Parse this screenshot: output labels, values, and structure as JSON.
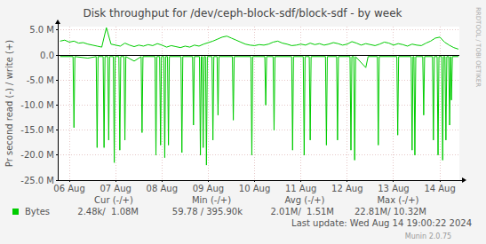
{
  "chart_data": {
    "type": "line",
    "title": "Disk throughput for /dev/ceph-block-sdf/block-sdf - by week",
    "y_label": "Pr second read (-) / write (+)",
    "watermark": "RRDTOOL / TOBI OETIKER",
    "last_update": "Last update: Wed Aug 14 19:00:22 2024",
    "footer": "Munin 2.0.75",
    "grid": true,
    "xlim": [
      5.75,
      14.42
    ],
    "xticks": [
      {
        "value": 6,
        "label": "06 Aug"
      },
      {
        "value": 7,
        "label": "07 Aug"
      },
      {
        "value": 8,
        "label": "08 Aug"
      },
      {
        "value": 9,
        "label": "09 Aug"
      },
      {
        "value": 10,
        "label": "10 Aug"
      },
      {
        "value": 11,
        "label": "11 Aug"
      },
      {
        "value": 12,
        "label": "12 Aug"
      },
      {
        "value": 13,
        "label": "13 Aug"
      },
      {
        "value": 14,
        "label": "14 Aug"
      }
    ],
    "ylim": [
      -25000000,
      5700000
    ],
    "yticks": [
      {
        "value": 5000000,
        "label": "5.0 M"
      },
      {
        "value": 0,
        "label": "0.0"
      },
      {
        "value": -5000000,
        "label": "-5.0 M"
      },
      {
        "value": -10000000,
        "label": "-10.0 M"
      },
      {
        "value": -15000000,
        "label": "-15.0 M"
      },
      {
        "value": -20000000,
        "label": "-20.0 M"
      },
      {
        "value": -25000000,
        "label": "-25.0 M"
      }
    ],
    "x": [
      5.8,
      5.9,
      6.0,
      6.1,
      6.2,
      6.3,
      6.4,
      6.5,
      6.6,
      6.7,
      6.8,
      6.9,
      7.0,
      7.1,
      7.2,
      7.3,
      7.4,
      7.5,
      7.6,
      7.7,
      7.8,
      7.9,
      8.0,
      8.1,
      8.2,
      8.3,
      8.4,
      8.5,
      8.6,
      8.7,
      8.8,
      8.9,
      9.0,
      9.1,
      9.2,
      9.3,
      9.4,
      9.5,
      9.6,
      9.7,
      9.8,
      9.9,
      10.0,
      10.1,
      10.2,
      10.3,
      10.4,
      10.5,
      10.6,
      10.7,
      10.8,
      10.9,
      11.0,
      11.1,
      11.2,
      11.3,
      11.4,
      11.5,
      11.6,
      11.7,
      11.8,
      11.9,
      12.0,
      12.1,
      12.2,
      12.3,
      12.4,
      12.5,
      12.6,
      12.7,
      12.8,
      12.9,
      13.0,
      13.1,
      13.2,
      13.3,
      13.4,
      13.5,
      13.6,
      13.7,
      13.8,
      13.9,
      14.0,
      14.1,
      14.2,
      14.3,
      14.4
    ],
    "series": [
      {
        "name": "Bytes",
        "color": "#00cc00",
        "values": [
          2800000,
          3000000,
          2600000,
          2800000,
          2400000,
          2500000,
          2200000,
          2000000,
          1800000,
          1600000,
          5500000,
          2200000,
          2000000,
          1800000,
          2400000,
          2000000,
          1700000,
          2000000,
          1800000,
          2100000,
          1900000,
          2300000,
          2000000,
          1600000,
          1900000,
          1700000,
          1500000,
          1800000,
          1600000,
          2000000,
          1800000,
          2200000,
          2500000,
          2800000,
          3200000,
          3600000,
          3800000,
          3400000,
          3000000,
          2600000,
          2200000,
          2000000,
          1900000,
          2100000,
          2000000,
          2200000,
          2600000,
          2800000,
          2400000,
          2200000,
          1900000,
          2000000,
          2200000,
          2000000,
          2400000,
          2100000,
          2300000,
          2000000,
          2200000,
          2500000,
          2300000,
          2000000,
          2200000,
          2700000,
          2400000,
          2000000,
          2300000,
          2100000,
          1900000,
          2200000,
          2600000,
          2400000,
          2000000,
          2300000,
          2100000,
          1800000,
          2200000,
          2000000,
          1900000,
          2400000,
          2800000,
          3400000,
          3600000,
          2600000,
          2000000,
          1500000,
          1200000
        ],
        "read": {
          "x": [
            5.8,
            6.08,
            6.1,
            6.12,
            6.4,
            6.58,
            6.6,
            6.62,
            6.73,
            6.75,
            6.77,
            6.83,
            6.85,
            6.87,
            6.95,
            6.97,
            6.99,
            7.07,
            7.09,
            7.11,
            7.18,
            7.2,
            7.22,
            7.4,
            7.55,
            7.57,
            7.59,
            7.85,
            7.87,
            7.89,
            7.95,
            7.97,
            7.99,
            8.04,
            8.06,
            8.08,
            8.12,
            8.14,
            8.16,
            8.41,
            8.43,
            8.45,
            8.66,
            8.68,
            8.7,
            8.81,
            8.83,
            8.85,
            8.87,
            8.89,
            8.91,
            8.94,
            8.96,
            8.98,
            9.08,
            9.1,
            9.12,
            9.19,
            9.21,
            9.23,
            9.52,
            9.54,
            9.56,
            9.92,
            9.94,
            9.96,
            10.22,
            10.24,
            10.26,
            10.4,
            10.42,
            10.44,
            10.8,
            10.82,
            10.84,
            11.05,
            11.07,
            11.09,
            11.18,
            11.2,
            11.22,
            11.53,
            11.55,
            11.57,
            11.77,
            11.79,
            11.81,
            12.06,
            12.08,
            12.1,
            12.14,
            12.16,
            12.18,
            12.4,
            12.45,
            12.65,
            12.67,
            12.69,
            13.07,
            13.09,
            13.11,
            13.38,
            13.4,
            13.42,
            13.44,
            13.46,
            13.48,
            13.63,
            13.65,
            13.67,
            13.84,
            13.86,
            13.88,
            13.94,
            13.96,
            13.98,
            14.04,
            14.06,
            14.08,
            14.11,
            14.13,
            14.15,
            14.19,
            14.21,
            14.23,
            14.25,
            14.27,
            14.4
          ],
          "values": [
            -300000,
            -300000,
            -14500000,
            -300000,
            -600000,
            -300000,
            -18500000,
            -300000,
            -300000,
            -18500000,
            -300000,
            -300000,
            -17000000,
            -300000,
            -300000,
            -21500000,
            -300000,
            -300000,
            -19000000,
            -300000,
            -300000,
            -17000000,
            -300000,
            -1200000,
            -300000,
            -15500000,
            -300000,
            -300000,
            -20000000,
            -300000,
            -300000,
            -18000000,
            -300000,
            -300000,
            -20500000,
            -300000,
            -300000,
            -18000000,
            -300000,
            -300000,
            -19500000,
            -300000,
            -300000,
            -14000000,
            -300000,
            -300000,
            -20000000,
            -300000,
            -300000,
            -18500000,
            -300000,
            -300000,
            -22000000,
            -300000,
            -300000,
            -17000000,
            -300000,
            -300000,
            -12000000,
            -300000,
            -300000,
            -13000000,
            -300000,
            -300000,
            -20000000,
            -300000,
            -300000,
            -10000000,
            -300000,
            -300000,
            -15000000,
            -300000,
            -300000,
            -19000000,
            -300000,
            -300000,
            -20000000,
            -300000,
            -300000,
            -17000000,
            -300000,
            -300000,
            -18000000,
            -300000,
            -300000,
            -17000000,
            -300000,
            -300000,
            -19000000,
            -300000,
            -300000,
            -21000000,
            -300000,
            -2500000,
            -300000,
            -300000,
            -18000000,
            -300000,
            -300000,
            -16000000,
            -300000,
            -300000,
            -19000000,
            -300000,
            -300000,
            -20000000,
            -300000,
            -300000,
            -12000000,
            -300000,
            -300000,
            -17000000,
            -300000,
            -300000,
            -20000000,
            -300000,
            -300000,
            -21000000,
            -300000,
            -300000,
            -17000000,
            -300000,
            -300000,
            -14000000,
            -300000,
            -9000000,
            -300000,
            -300000
          ]
        }
      }
    ],
    "stats": {
      "headers": [
        "Cur (-/+)",
        "Min (-/+)",
        "Avg (-/+)",
        "Max (-/+)"
      ],
      "cells": [
        "2.48k/  1.08M",
        "59.78 / 395.90k",
        "2.01M/  1.51M",
        "22.81M/ 10.32M"
      ]
    }
  }
}
